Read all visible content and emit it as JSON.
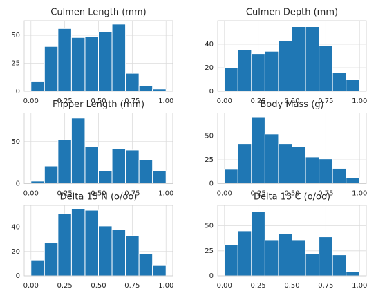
{
  "chart_data": [
    {
      "type": "histogram",
      "title": "Culmen Length (mm)",
      "bins": [
        0,
        0.1,
        0.2,
        0.3,
        0.4,
        0.5,
        0.6,
        0.7,
        0.8,
        0.9,
        1
      ],
      "values": [
        9,
        40,
        56,
        48,
        49,
        53,
        60,
        16,
        5,
        2
      ],
      "color": "#1f77b4",
      "grid": true,
      "xlim": [
        -0.05,
        1.05
      ],
      "ylim": [
        0,
        63
      ],
      "xticks": [
        {
          "value": 0,
          "label": "0.00"
        },
        {
          "value": 0.25,
          "label": "0.25"
        },
        {
          "value": 0.5,
          "label": "0.50"
        },
        {
          "value": 0.75,
          "label": "0.75"
        },
        {
          "value": 1,
          "label": "1.00"
        }
      ],
      "yticks": [
        0,
        25,
        50
      ]
    },
    {
      "type": "histogram",
      "title": "Culmen Depth (mm)",
      "bins": [
        0,
        0.1,
        0.2,
        0.3,
        0.4,
        0.5,
        0.6,
        0.7,
        0.8,
        0.9,
        1
      ],
      "values": [
        20,
        35,
        32,
        34,
        43,
        55,
        55,
        39,
        16,
        10
      ],
      "color": "#1f77b4",
      "grid": true,
      "xlim": [
        -0.05,
        1.05
      ],
      "ylim": [
        0,
        60
      ],
      "xticks": [
        {
          "value": 0,
          "label": "0.00"
        },
        {
          "value": 0.25,
          "label": "0.25"
        },
        {
          "value": 0.5,
          "label": "0.50"
        },
        {
          "value": 0.75,
          "label": "0.75"
        },
        {
          "value": 1,
          "label": "1.00"
        }
      ],
      "yticks": [
        0,
        20,
        40
      ]
    },
    {
      "type": "histogram",
      "title": "Flipper Length (mm)",
      "bins": [
        0,
        0.1,
        0.2,
        0.3,
        0.4,
        0.5,
        0.6,
        0.7,
        0.8,
        0.9,
        1
      ],
      "values": [
        3,
        21,
        52,
        78,
        44,
        15,
        42,
        40,
        28,
        15
      ],
      "color": "#1f77b4",
      "grid": true,
      "xlim": [
        -0.05,
        1.05
      ],
      "ylim": [
        0,
        84
      ],
      "xticks": [
        {
          "value": 0,
          "label": "0.00"
        },
        {
          "value": 0.25,
          "label": "0.25"
        },
        {
          "value": 0.5,
          "label": "0.50"
        },
        {
          "value": 0.75,
          "label": "0.75"
        },
        {
          "value": 1,
          "label": "1.00"
        }
      ],
      "yticks": [
        0,
        50
      ]
    },
    {
      "type": "histogram",
      "title": "Body Mass (g)",
      "bins": [
        0,
        0.1,
        0.2,
        0.3,
        0.4,
        0.5,
        0.6,
        0.7,
        0.8,
        0.9,
        1
      ],
      "values": [
        15,
        42,
        70,
        52,
        42,
        39,
        28,
        26,
        16,
        6
      ],
      "color": "#1f77b4",
      "grid": true,
      "xlim": [
        -0.05,
        1.05
      ],
      "ylim": [
        0,
        74
      ],
      "xticks": [
        {
          "value": 0,
          "label": "0.00"
        },
        {
          "value": 0.25,
          "label": "0.25"
        },
        {
          "value": 0.5,
          "label": "0.50"
        },
        {
          "value": 0.75,
          "label": "0.75"
        },
        {
          "value": 1,
          "label": "1.00"
        }
      ],
      "yticks": [
        0,
        25,
        50
      ]
    },
    {
      "type": "histogram",
      "title": "Delta 15 N (o/oo)",
      "bins": [
        0,
        0.1,
        0.2,
        0.3,
        0.4,
        0.5,
        0.6,
        0.7,
        0.8,
        0.9,
        1
      ],
      "values": [
        13,
        27,
        51,
        55,
        54,
        41,
        38,
        33,
        18,
        9
      ],
      "color": "#1f77b4",
      "grid": true,
      "xlim": [
        -0.05,
        1.05
      ],
      "ylim": [
        0,
        58
      ],
      "xticks": [
        {
          "value": 0,
          "label": "0.00"
        },
        {
          "value": 0.25,
          "label": "0.25"
        },
        {
          "value": 0.5,
          "label": "0.50"
        },
        {
          "value": 0.75,
          "label": "0.75"
        },
        {
          "value": 1,
          "label": "1.00"
        }
      ],
      "yticks": [
        0,
        20,
        40
      ]
    },
    {
      "type": "histogram",
      "title": "Delta 13 C (o/oo)",
      "bins": [
        0,
        0.1,
        0.2,
        0.3,
        0.4,
        0.5,
        0.6,
        0.7,
        0.8,
        0.9,
        1
      ],
      "values": [
        31,
        45,
        64,
        36,
        42,
        36,
        22,
        39,
        21,
        4
      ],
      "color": "#1f77b4",
      "grid": true,
      "xlim": [
        -0.05,
        1.05
      ],
      "ylim": [
        0,
        70.5
      ],
      "xticks": [
        {
          "value": 0,
          "label": "0.00"
        },
        {
          "value": 0.25,
          "label": "0.25"
        },
        {
          "value": 0.5,
          "label": "0.50"
        },
        {
          "value": 0.75,
          "label": "0.75"
        },
        {
          "value": 1,
          "label": "1.00"
        }
      ],
      "yticks": [
        0,
        25,
        50
      ]
    }
  ]
}
